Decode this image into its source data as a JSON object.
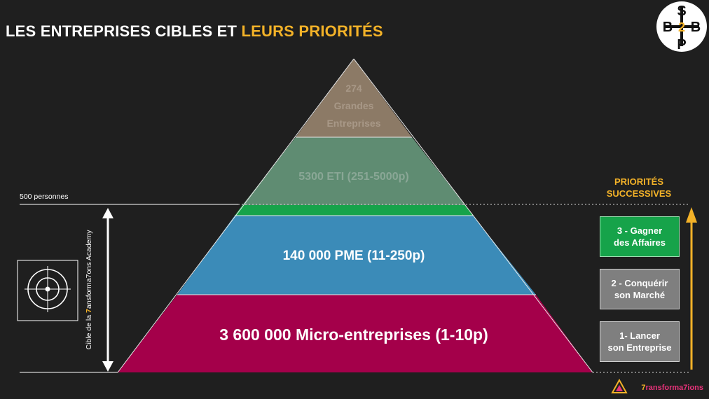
{
  "title": {
    "main": "LES ENTREPRISES CIBLES ET",
    "highlight": "LEURS PRIORITÉS"
  },
  "logo_badge": {
    "letters": [
      "S",
      "B",
      "2",
      "B",
      "P"
    ]
  },
  "pyramid": {
    "levels": [
      {
        "lines": [
          "274",
          "Grandes",
          "Entreprises"
        ],
        "color": "#8c7a66"
      },
      {
        "lines": [
          "5300 ETI (251-5000p)"
        ],
        "color": "#5f8c72"
      },
      {
        "lines": [
          "140 000 PME (11-250p)"
        ],
        "color": "#3b8bb8"
      },
      {
        "lines": [
          "3 600 000 Micro-entreprises (1-10p)"
        ],
        "color": "#a4004a"
      }
    ]
  },
  "threshold_label": "500 personnes",
  "vertical_label": {
    "before": "Cible de la ",
    "seven": "7",
    "after": "ansforma7ons Academy"
  },
  "priorities": {
    "title_lines": [
      "PRIORITÉS",
      "SUCCESSIVES"
    ],
    "items": [
      {
        "line1": "3 - Gagner",
        "line2": "des Affaires"
      },
      {
        "line1": "2 - Conquérir",
        "line2": "son Marché"
      },
      {
        "line1": "1- Lancer",
        "line2": "son Entreprise"
      }
    ],
    "arrow_color": "#f3b228"
  },
  "brand_logo": {
    "seven": "7",
    "text": "ransforma7ions"
  }
}
